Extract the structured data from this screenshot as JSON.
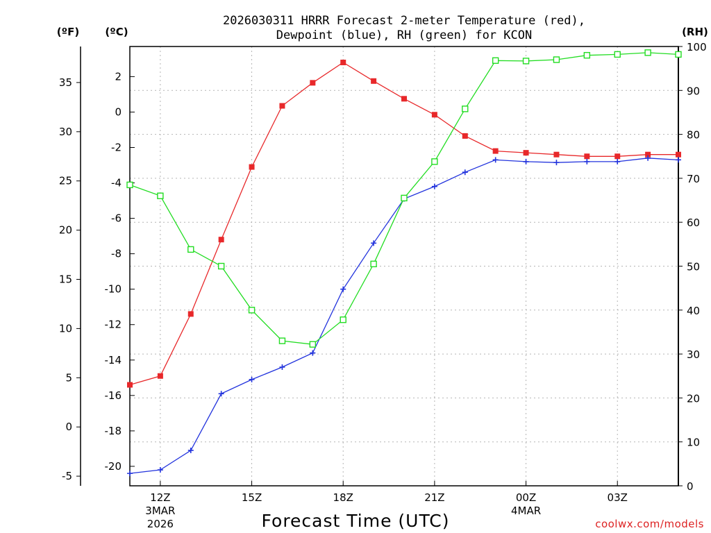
{
  "chart_data": {
    "type": "line",
    "title_line1": "2026030311 HRRR Forecast 2-meter Temperature (red),",
    "title_line2": "Dewpoint (blue), RH (green) for KCON",
    "xlabel": "Forecast Time (UTC)",
    "credit": "coolwx.com/models",
    "units": {
      "fahrenheit": "(ºF)",
      "celsius": "(ºC)",
      "rh": "(RH)"
    },
    "x_hours": [
      11,
      12,
      13,
      14,
      15,
      16,
      17,
      18,
      19,
      20,
      21,
      22,
      23,
      24,
      25,
      26,
      27,
      28,
      29
    ],
    "x_range": [
      11,
      29
    ],
    "x_ticks": [
      {
        "hour": 12,
        "label": "12Z",
        "sub1": "3MAR",
        "sub2": "2026"
      },
      {
        "hour": 15,
        "label": "15Z",
        "sub1": "",
        "sub2": ""
      },
      {
        "hour": 18,
        "label": "18Z",
        "sub1": "",
        "sub2": ""
      },
      {
        "hour": 21,
        "label": "21Z",
        "sub1": "",
        "sub2": ""
      },
      {
        "hour": 24,
        "label": "00Z",
        "sub1": "4MAR",
        "sub2": ""
      },
      {
        "hour": 27,
        "label": "03Z",
        "sub1": "",
        "sub2": ""
      }
    ],
    "celsius_axis": {
      "range": [
        -21.1,
        3.7
      ],
      "ticks": [
        "2",
        "0",
        "-2",
        "-4",
        "-6",
        "-8",
        "-10",
        "-12",
        "-14",
        "-16",
        "-18",
        "-20"
      ]
    },
    "fahrenheit_axis": {
      "range": [
        -5.98,
        38.66
      ],
      "ticks": [
        "35",
        "30",
        "25",
        "20",
        "15",
        "10",
        "5",
        "0",
        "-5"
      ]
    },
    "rh_axis": {
      "range": [
        0,
        100
      ],
      "ticks": [
        "100",
        "90",
        "80",
        "70",
        "60",
        "50",
        "40",
        "30",
        "20",
        "10",
        "0"
      ]
    },
    "series": [
      {
        "name": "Temperature",
        "axis": "celsius",
        "color": "#e8282a",
        "marker": "filled-square",
        "values": [
          -15.4,
          -14.9,
          -11.4,
          -7.2,
          -3.1,
          0.35,
          1.65,
          2.8,
          1.75,
          0.75,
          -0.15,
          -1.35,
          -2.2,
          -2.3,
          -2.4,
          -2.5,
          -2.5,
          -2.4,
          -2.4
        ]
      },
      {
        "name": "Dewpoint",
        "axis": "celsius",
        "color": "#2233dd",
        "marker": "plus",
        "values": [
          -20.4,
          -20.2,
          -19.1,
          -15.9,
          -15.1,
          -14.4,
          -13.6,
          -10.0,
          -7.4,
          -4.9,
          -4.2,
          -3.4,
          -2.7,
          -2.8,
          -2.85,
          -2.8,
          -2.8,
          -2.6,
          -2.7
        ]
      },
      {
        "name": "RH",
        "axis": "rh",
        "color": "#22dd22",
        "marker": "open-square",
        "values": [
          68.5,
          66.0,
          53.8,
          50.0,
          40.0,
          33.0,
          32.2,
          37.8,
          50.5,
          65.5,
          73.8,
          85.8,
          96.8,
          96.7,
          97.0,
          98.0,
          98.2,
          98.6,
          98.2
        ]
      }
    ]
  }
}
